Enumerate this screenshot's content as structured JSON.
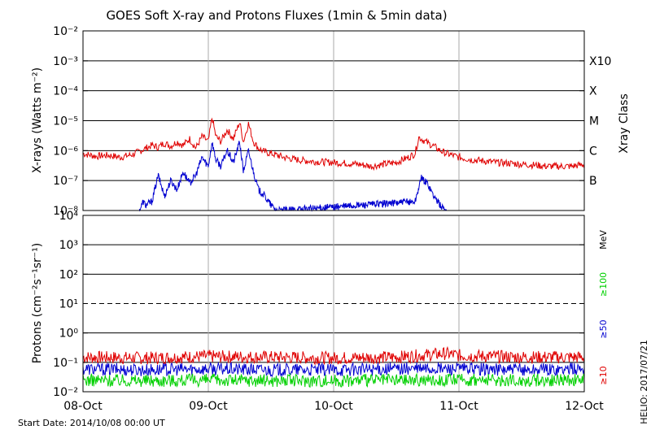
{
  "chart_data": [
    {
      "type": "line",
      "title": "GOES Soft X-ray and Protons Fluxes   (1min & 5min data)",
      "ylabel": "X-rays (Watts m⁻²)",
      "yscale": "log",
      "ylim": [
        1e-08,
        0.01
      ],
      "y_tick_labels": [
        "10⁻⁸",
        "10⁻⁷",
        "10⁻⁶",
        "10⁻⁵",
        "10⁻⁴",
        "10⁻³",
        "10⁻²"
      ],
      "right_axis_label": "Xray Class",
      "right_tick_labels": [
        "X10",
        "X",
        "M",
        "C",
        "B"
      ],
      "x_tick_labels": [
        "08-Oct",
        "09-Oct",
        "10-Oct",
        "11-Oct",
        "12-Oct"
      ],
      "xlim": [
        0,
        4
      ],
      "grid": true,
      "series": [
        {
          "color": "#e00000",
          "x": [
            0.0,
            0.1,
            0.2,
            0.3,
            0.4,
            0.5,
            0.55,
            0.6,
            0.65,
            0.7,
            0.75,
            0.8,
            0.85,
            0.9,
            0.95,
            1.0,
            1.03,
            1.06,
            1.1,
            1.15,
            1.2,
            1.25,
            1.28,
            1.32,
            1.36,
            1.4,
            1.45,
            1.5,
            1.55,
            1.6,
            1.7,
            1.8,
            1.9,
            2.0,
            2.1,
            2.2,
            2.3,
            2.4,
            2.5,
            2.55,
            2.6,
            2.65,
            2.68,
            2.7,
            2.75,
            2.8,
            2.85,
            2.9,
            3.0,
            3.1,
            3.2,
            3.3,
            3.4,
            3.5,
            3.6,
            3.7,
            3.8,
            3.9,
            4.0
          ],
          "values": [
            8e-07,
            6.5e-07,
            7e-07,
            6e-07,
            7.5e-07,
            1.2e-06,
            1.5e-06,
            1.3e-06,
            1.8e-06,
            1.4e-06,
            2e-06,
            1.5e-06,
            2.5e-06,
            1.2e-06,
            3e-06,
            2e-06,
            1.3e-05,
            3e-06,
            2e-06,
            5e-06,
            2.5e-06,
            9e-06,
            2e-06,
            8e-06,
            2e-06,
            1.2e-06,
            9e-07,
            8e-07,
            7e-07,
            6e-07,
            5e-07,
            4.5e-07,
            4.2e-07,
            4e-07,
            3.8e-07,
            3.5e-07,
            3e-07,
            3.5e-07,
            4e-07,
            5e-07,
            6e-07,
            8e-07,
            2.8e-06,
            2.5e-06,
            1.8e-06,
            1.4e-06,
            1e-06,
            8e-07,
            6e-07,
            5e-07,
            4.5e-07,
            4e-07,
            3.8e-07,
            3.5e-07,
            3.3e-07,
            3e-07,
            3e-07,
            3e-07,
            3.5e-07
          ]
        },
        {
          "color": "#0000d0",
          "x": [
            0.45,
            0.48,
            0.5,
            0.55,
            0.6,
            0.65,
            0.7,
            0.75,
            0.8,
            0.85,
            0.9,
            0.95,
            1.0,
            1.03,
            1.06,
            1.1,
            1.15,
            1.2,
            1.25,
            1.28,
            1.32,
            1.36,
            1.4,
            1.45,
            1.5,
            1.55,
            1.6,
            2.65,
            2.68,
            2.7,
            2.75,
            2.8,
            2.85,
            2.9
          ],
          "values": [
            1e-08,
            2e-08,
            1.5e-08,
            2e-08,
            1.5e-07,
            3e-08,
            1e-07,
            5e-08,
            2e-07,
            8e-08,
            1.5e-07,
            6e-07,
            3e-07,
            2e-06,
            5e-07,
            3e-07,
            1e-06,
            4e-07,
            2e-06,
            2e-07,
            1e-06,
            2e-07,
            5e-08,
            3e-08,
            1.5e-08,
            1e-08,
            1e-08,
            2e-08,
            6e-08,
            1.2e-07,
            8e-08,
            3e-08,
            1.5e-08,
            1e-08
          ]
        }
      ]
    },
    {
      "type": "line",
      "ylabel": "Protons (cm⁻²s⁻¹sr⁻¹)",
      "yscale": "log",
      "ylim": [
        0.01,
        10000
      ],
      "y_tick_labels": [
        "10⁻²",
        "10⁻¹",
        "10⁰",
        "10¹",
        "10²",
        "10³",
        "10⁴"
      ],
      "right_axis_unit": "MeV",
      "x_tick_labels": [
        "08-Oct",
        "09-Oct",
        "10-Oct",
        "11-Oct",
        "12-Oct"
      ],
      "xlim": [
        0,
        4
      ],
      "threshold_line": 10,
      "grid": true,
      "series": [
        {
          "name": "≥10",
          "color": "#e00000",
          "x": [
            0.0,
            0.5,
            1.0,
            1.5,
            2.0,
            2.5,
            2.9,
            3.0,
            3.5,
            4.0
          ],
          "values": [
            0.15,
            0.14,
            0.16,
            0.15,
            0.14,
            0.15,
            0.2,
            0.17,
            0.15,
            0.15
          ]
        },
        {
          "name": "≥50",
          "color": "#0000d0",
          "x": [
            0.0,
            0.5,
            1.0,
            1.5,
            2.0,
            2.5,
            3.0,
            3.5,
            4.0
          ],
          "values": [
            0.06,
            0.055,
            0.06,
            0.055,
            0.055,
            0.06,
            0.06,
            0.055,
            0.06
          ]
        },
        {
          "name": "≥100",
          "color": "#00d000",
          "x": [
            0.0,
            0.5,
            1.0,
            1.5,
            2.0,
            2.5,
            3.0,
            3.5,
            4.0
          ],
          "values": [
            0.025,
            0.024,
            0.025,
            0.024,
            0.024,
            0.025,
            0.025,
            0.024,
            0.025
          ]
        }
      ]
    }
  ],
  "footer": {
    "start_date": "Start Date: 2014/10/08 00:00 UT",
    "credit": "HELIO: 2017/07/21"
  }
}
